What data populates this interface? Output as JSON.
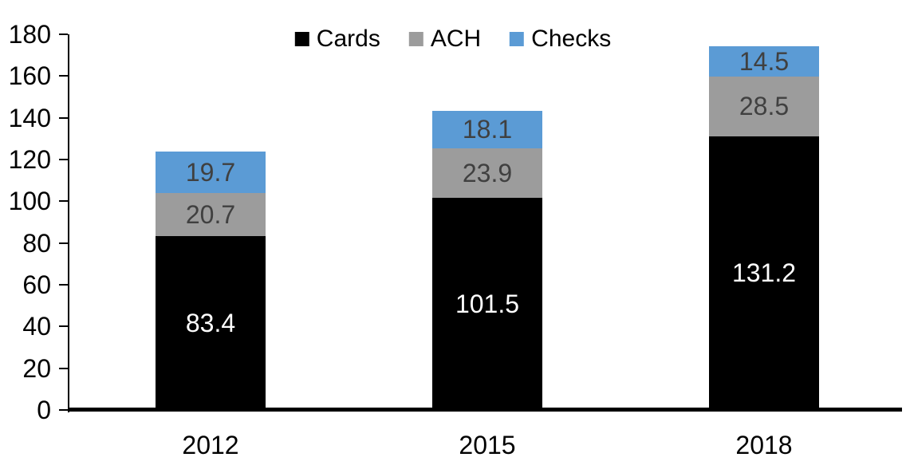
{
  "chart_data": {
    "type": "bar",
    "subtype": "stacked-column",
    "title": "",
    "categories": [
      "2012",
      "2015",
      "2018"
    ],
    "series": [
      {
        "name": "Cards",
        "color": "#000000",
        "label_color": "#ffffff",
        "values": [
          83.4,
          101.5,
          131.2
        ]
      },
      {
        "name": "ACH",
        "color": "#9c9c9c",
        "label_color": "#404040",
        "values": [
          20.7,
          23.9,
          28.5
        ]
      },
      {
        "name": "Checks",
        "color": "#5b9bd5",
        "label_color": "#404040",
        "values": [
          19.7,
          18.1,
          14.5
        ]
      }
    ],
    "data_labels": [
      "83.4",
      "101.5",
      "131.2",
      "20.7",
      "23.9",
      "28.5",
      "19.7",
      "18.1",
      "14.5"
    ],
    "legend": [
      "Cards",
      "ACH",
      "Checks"
    ],
    "legend_position": "top",
    "ylim": [
      0,
      180
    ],
    "yticks": [
      0,
      20,
      40,
      60,
      80,
      100,
      120,
      140,
      160,
      180
    ],
    "xlabel": "",
    "ylabel": "",
    "grid": false,
    "axis_color": "#000000",
    "background_color": "#ffffff"
  }
}
